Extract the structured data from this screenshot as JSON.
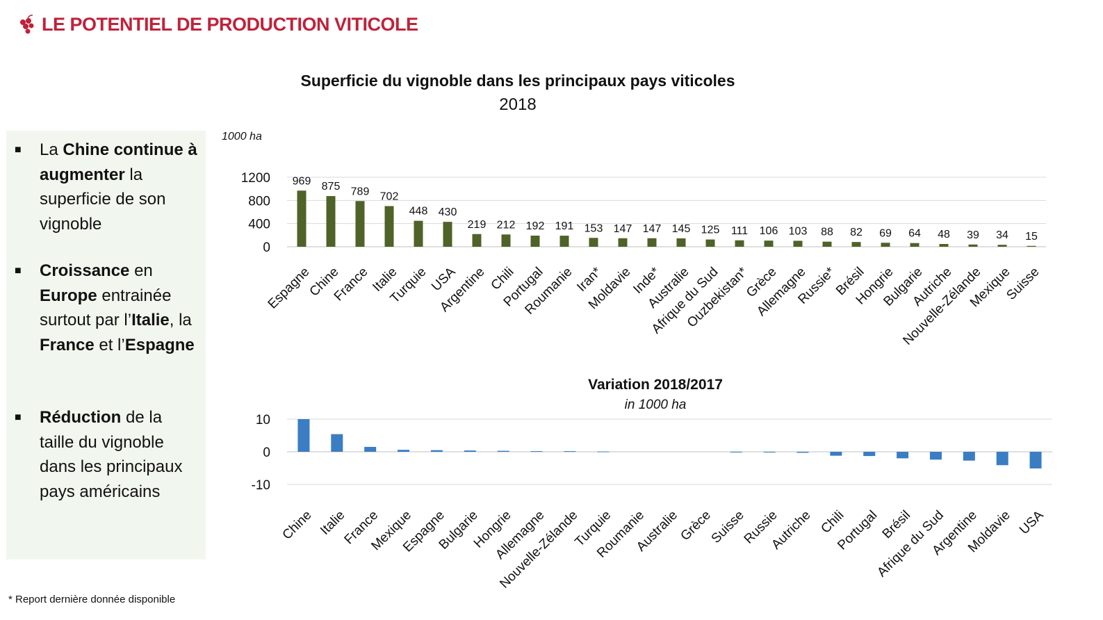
{
  "header": {
    "title": "LE POTENTIEL DE PRODUCTION VITICOLE",
    "logo_icon": "grapes-icon",
    "brand_color": "#c0223a"
  },
  "panel": {
    "bullets": [
      {
        "parts": [
          {
            "t": "La ",
            "b": false
          },
          {
            "t": "Chine continue à augmenter",
            "b": true
          },
          {
            "t": " la superficie de son vignoble",
            "b": false
          }
        ]
      },
      {
        "parts": [
          {
            "t": "Croissance",
            "b": true
          },
          {
            "t": " en ",
            "b": false
          },
          {
            "t": "Europe",
            "b": true
          },
          {
            "t": " entrainée surtout par l’",
            "b": false
          },
          {
            "t": "Italie",
            "b": true
          },
          {
            "t": ", la ",
            "b": false
          },
          {
            "t": "France",
            "b": true
          },
          {
            "t": " et l’",
            "b": false
          },
          {
            "t": "Espagne",
            "b": true
          }
        ]
      },
      {
        "parts": [
          {
            "t": "Réduction",
            "b": true
          },
          {
            "t": " de la taille du vignoble dans les principaux pays américains",
            "b": false
          }
        ]
      }
    ]
  },
  "footnote": "* Report dernière donnée disponible",
  "chart_data": [
    {
      "type": "bar",
      "title": "Superficie du vignoble dans les principaux pays viticoles",
      "subtitle": "2018",
      "ylabel": "1000 ha",
      "ylim": [
        0,
        1200
      ],
      "yticks": [
        0,
        400,
        800,
        1200
      ],
      "grid": true,
      "bar_color": "#4f6228",
      "categories": [
        "Espagne",
        "Chine",
        "France",
        "Italie",
        "Turquie",
        "USA",
        "Argentine",
        "Chili",
        "Portugal",
        "Roumanie",
        "Iran*",
        "Moldavie",
        "Inde*",
        "Australie",
        "Afrique du Sud",
        "Ouzbekistan*",
        "Grèce",
        "Allemagne",
        "Russie*",
        "Brésil",
        "Hongrie",
        "Bulgarie",
        "Autriche",
        "Nouvelle-Zélande",
        "Mexique",
        "Suisse"
      ],
      "values": [
        969,
        875,
        789,
        702,
        448,
        430,
        219,
        212,
        192,
        191,
        153,
        147,
        147,
        145,
        125,
        111,
        106,
        103,
        88,
        82,
        69,
        64,
        48,
        39,
        34,
        15
      ],
      "data_labels": true
    },
    {
      "type": "bar",
      "title": "Variation 2018/2017",
      "subtitle": "in 1000 ha",
      "ylim": [
        -10,
        10
      ],
      "yticks": [
        -10,
        0,
        10
      ],
      "grid": true,
      "bar_color": "#3a7dc3",
      "categories": [
        "Chine",
        "Italie",
        "France",
        "Mexique",
        "Espagne",
        "Bulgarie",
        "Hongrie",
        "Allemagne",
        "Nouvelle-Zélande",
        "Turquie",
        "Roumanie",
        "Australie",
        "Grèce",
        "Suisse",
        "Russie",
        "Autriche",
        "Chili",
        "Portugal",
        "Brésil",
        "Afrique du Sud",
        "Argentine",
        "Moldavie",
        "USA"
      ],
      "values": [
        10,
        5.4,
        1.5,
        0.6,
        0.5,
        0.4,
        0.3,
        0.2,
        0.2,
        0.1,
        0,
        0,
        0,
        -0.1,
        -0.2,
        -0.3,
        -1.2,
        -1.3,
        -2,
        -2.4,
        -2.7,
        -4.1,
        -5.1
      ]
    }
  ]
}
